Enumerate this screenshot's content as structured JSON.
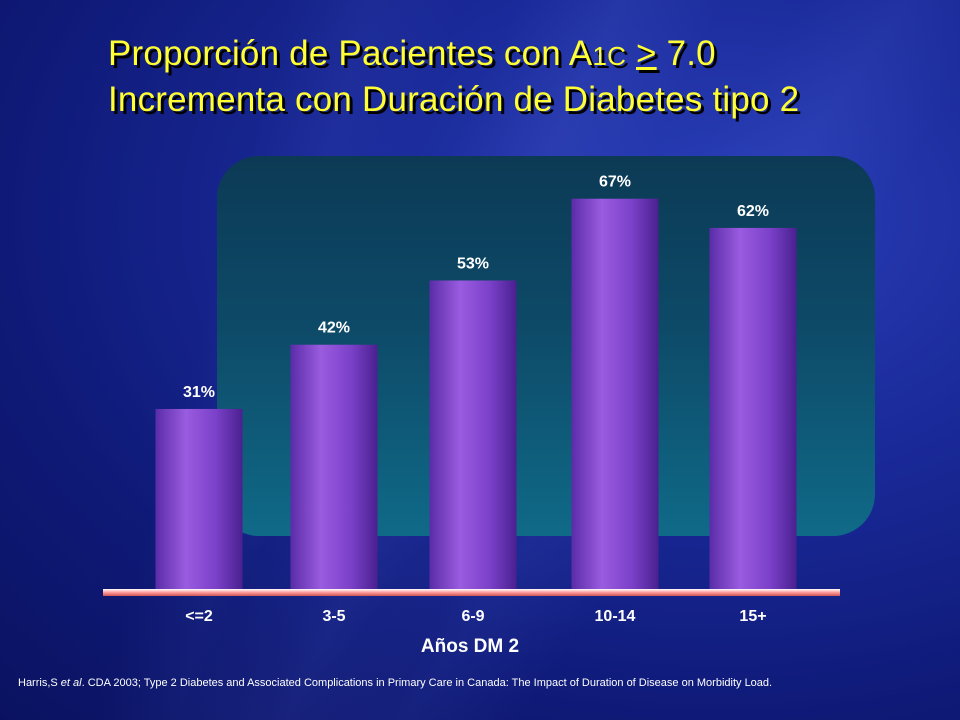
{
  "slide": {
    "title_line1_before": "Proporción de Pacientes con A",
    "title_line1_sub": "1C",
    "title_line1_symbol": ">",
    "title_line1_after": " 7.0",
    "title_line2": "Incrementa con Duración de Diabetes tipo 2",
    "footnote_author": "Harris,S ",
    "footnote_etal": "et al",
    "footnote_rest": ". CDA 2003; Type 2 Diabetes and Associated Complications in Primary Care in Canada: The Impact of Duration of Disease on Morbidity Load."
  },
  "colors": {
    "title": "#ffff33",
    "bar_top": "#9a5ce0",
    "bar_bottom": "#5a2ca8",
    "baseline": "#ff9999"
  },
  "chart_data": {
    "type": "bar",
    "categories": [
      "<=2",
      "3-5",
      "6-9",
      "10-14",
      "15+"
    ],
    "values": [
      31,
      42,
      53,
      67,
      62
    ],
    "value_labels": [
      "31%",
      "42%",
      "53%",
      "67%",
      "62%"
    ],
    "xlabel": "Años DM 2",
    "ylabel": "",
    "ylim": [
      0,
      100
    ],
    "grid": false,
    "legend": "none"
  }
}
